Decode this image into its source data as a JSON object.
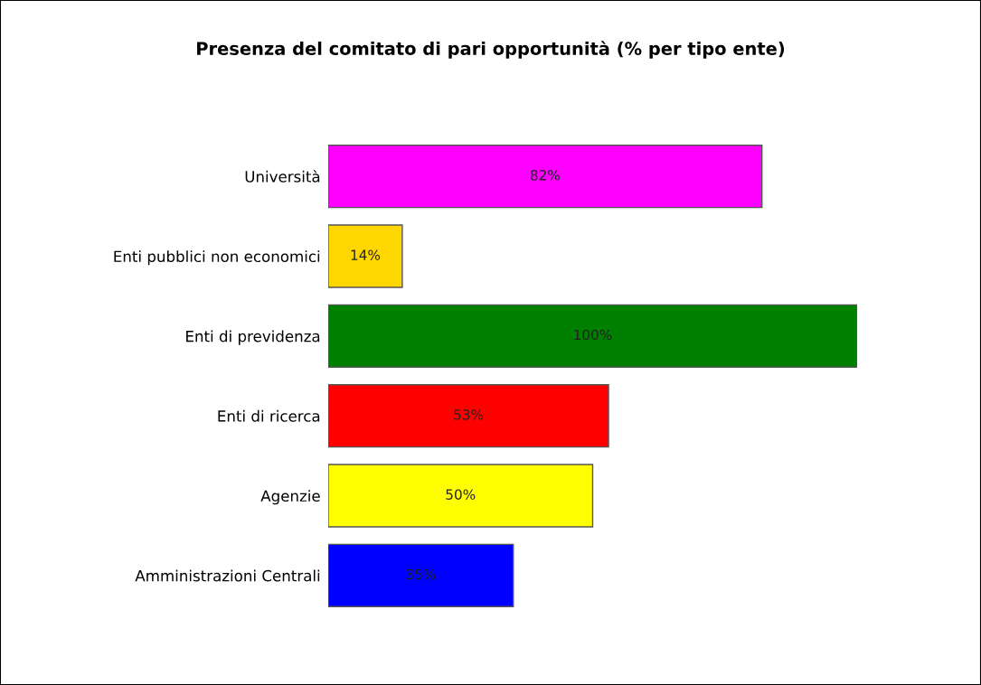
{
  "chart_data": {
    "type": "bar",
    "orientation": "horizontal",
    "title": "Presenza del comitato di pari opportunità (% per tipo ente)",
    "categories": [
      "Università",
      "Enti pubblici non economici",
      "Enti di previdenza",
      "Enti di ricerca",
      "Agenzie",
      "Amministrazioni Centrali"
    ],
    "values": [
      82,
      14,
      100,
      53,
      50,
      35
    ],
    "colors": [
      "#ff00ff",
      "#ffd700",
      "#008000",
      "#ff0000",
      "#ffff00",
      "#0000ff"
    ],
    "value_labels": [
      "82%",
      "14%",
      "100%",
      "53%",
      "50%",
      "35%"
    ],
    "grid": false,
    "legend": false
  }
}
